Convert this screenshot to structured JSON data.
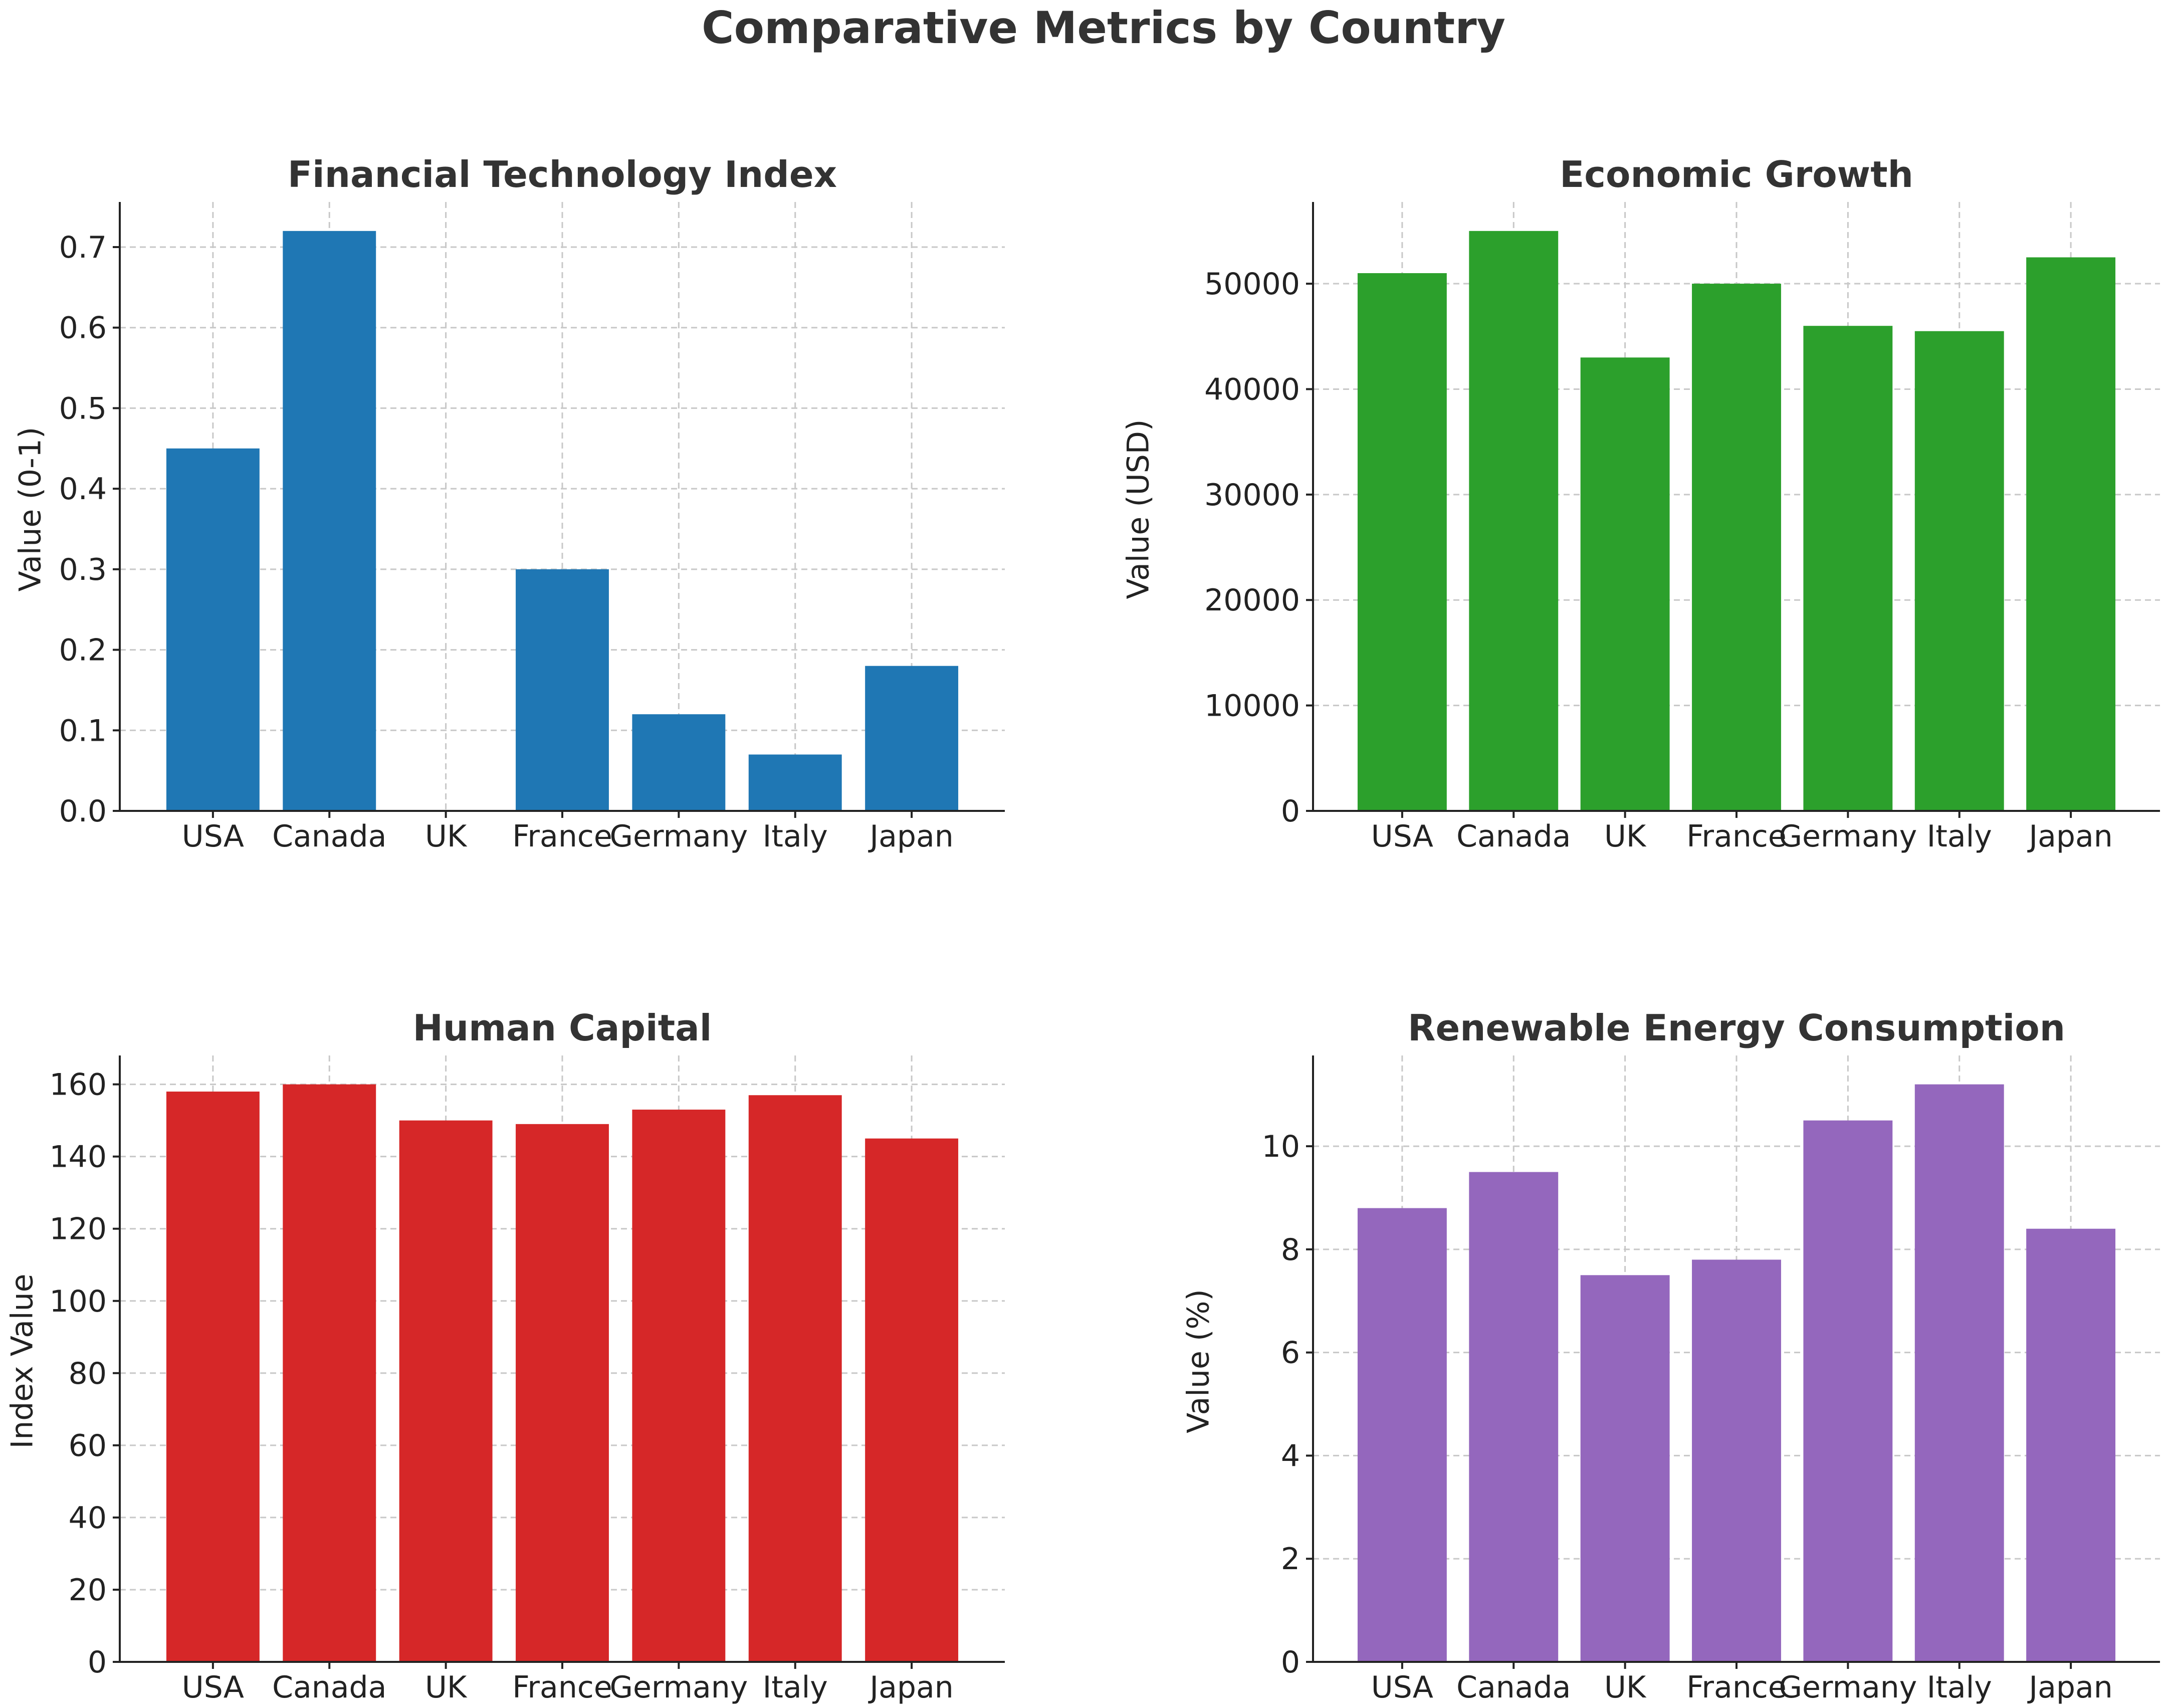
{
  "figure": {
    "suptitle": "Comparative Metrics by Country"
  },
  "chart_data": [
    {
      "type": "bar",
      "title": "Financial Technology Index",
      "xlabel": "",
      "ylabel": "Value (0-1)",
      "categories": [
        "USA",
        "Canada",
        "UK",
        "France",
        "Germany",
        "Italy",
        "Japan"
      ],
      "values": [
        0.45,
        0.72,
        0.0,
        0.3,
        0.12,
        0.07,
        0.18
      ],
      "ylim": [
        0,
        0.756
      ],
      "yticks": [
        0.0,
        0.1,
        0.2,
        0.3,
        0.4,
        0.5,
        0.6,
        0.7
      ],
      "ytick_labels": [
        "0.0",
        "0.1",
        "0.2",
        "0.3",
        "0.4",
        "0.5",
        "0.6",
        "0.7"
      ],
      "grid": true,
      "color": "#1f77b4"
    },
    {
      "type": "bar",
      "title": "Economic Growth",
      "xlabel": "",
      "ylabel": "Value (USD)",
      "categories": [
        "USA",
        "Canada",
        "UK",
        "France",
        "Germany",
        "Italy",
        "Japan"
      ],
      "values": [
        51000,
        55000,
        43000,
        50000,
        46000,
        45500,
        52500
      ],
      "ylim": [
        0,
        57750
      ],
      "yticks": [
        0,
        10000,
        20000,
        30000,
        40000,
        50000
      ],
      "ytick_labels": [
        "0",
        "10000",
        "20000",
        "30000",
        "40000",
        "50000"
      ],
      "grid": true,
      "color": "#2ca02c"
    },
    {
      "type": "bar",
      "title": "Human Capital",
      "xlabel": "",
      "ylabel": "Index Value",
      "categories": [
        "USA",
        "Canada",
        "UK",
        "France",
        "Germany",
        "Italy",
        "Japan"
      ],
      "values": [
        158,
        160,
        150,
        149,
        153,
        157,
        145
      ],
      "ylim": [
        0,
        168
      ],
      "yticks": [
        0,
        20,
        40,
        60,
        80,
        100,
        120,
        140,
        160
      ],
      "ytick_labels": [
        "0",
        "20",
        "40",
        "60",
        "80",
        "100",
        "120",
        "140",
        "160"
      ],
      "grid": true,
      "color": "#d62728"
    },
    {
      "type": "bar",
      "title": "Renewable Energy Consumption",
      "xlabel": "",
      "ylabel": "Value (%)",
      "categories": [
        "USA",
        "Canada",
        "UK",
        "France",
        "Germany",
        "Italy",
        "Japan"
      ],
      "values": [
        8.8,
        9.5,
        7.5,
        7.8,
        10.5,
        11.2,
        8.4
      ],
      "ylim": [
        0,
        11.76
      ],
      "yticks": [
        0,
        2,
        4,
        6,
        8,
        10
      ],
      "ytick_labels": [
        "0",
        "2",
        "4",
        "6",
        "8",
        "10"
      ],
      "grid": true,
      "color": "#9467bd"
    }
  ]
}
